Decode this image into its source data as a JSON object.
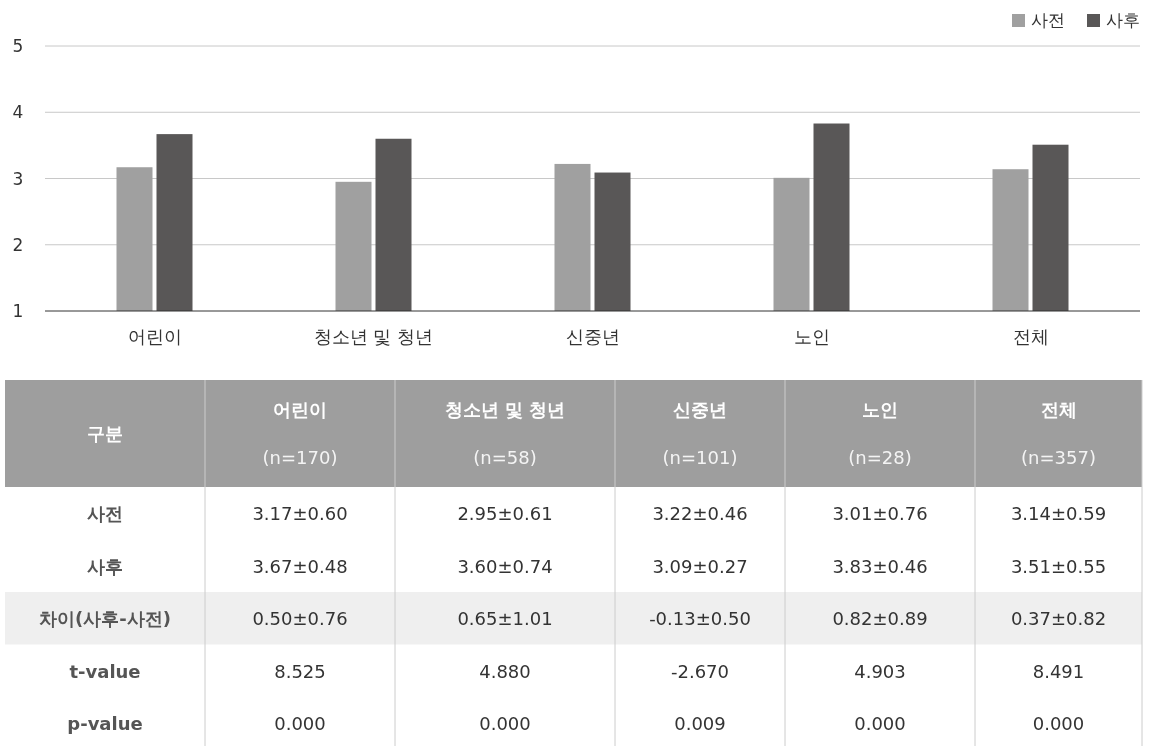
{
  "chart_data": {
    "type": "bar",
    "categories": [
      "어린이",
      "청소년  및 청년",
      "신중년",
      "노인",
      "전체"
    ],
    "series": [
      {
        "name": "사전",
        "color": "#a0a0a0",
        "values": [
          3.17,
          2.95,
          3.22,
          3.01,
          3.14
        ]
      },
      {
        "name": "사후",
        "color": "#595757",
        "values": [
          3.67,
          3.6,
          3.09,
          3.83,
          3.51
        ]
      }
    ],
    "ylim": [
      1,
      5
    ],
    "yticks": [
      1,
      2,
      3,
      4,
      5
    ],
    "grid": "y",
    "legend": "top right",
    "annotations": [
      "구분",
      "(n=170)",
      "(n=58)",
      "(n=101)",
      "(n=28)",
      "(n=357)",
      "사전",
      "3.17±0.60",
      "2.95±0.61",
      "3.22±0.46",
      "3.01±0.76",
      "3.14±0.59",
      "사후",
      "3.67±0.48",
      "3.60±0.74",
      "3.09±0.27",
      "3.83±0.46",
      "3.51±0.55",
      "차이(사후-사전)",
      "0.50±0.76",
      "0.65±1.01",
      "-0.13±0.50",
      "0.82±0.89",
      "0.37±0.82",
      "t-value",
      "8.525",
      "4.880",
      "-2.670",
      "4.903",
      "8.491",
      "p-value",
      "0.000",
      "0.000",
      "0.009",
      "0.000",
      "0.000"
    ]
  }
}
